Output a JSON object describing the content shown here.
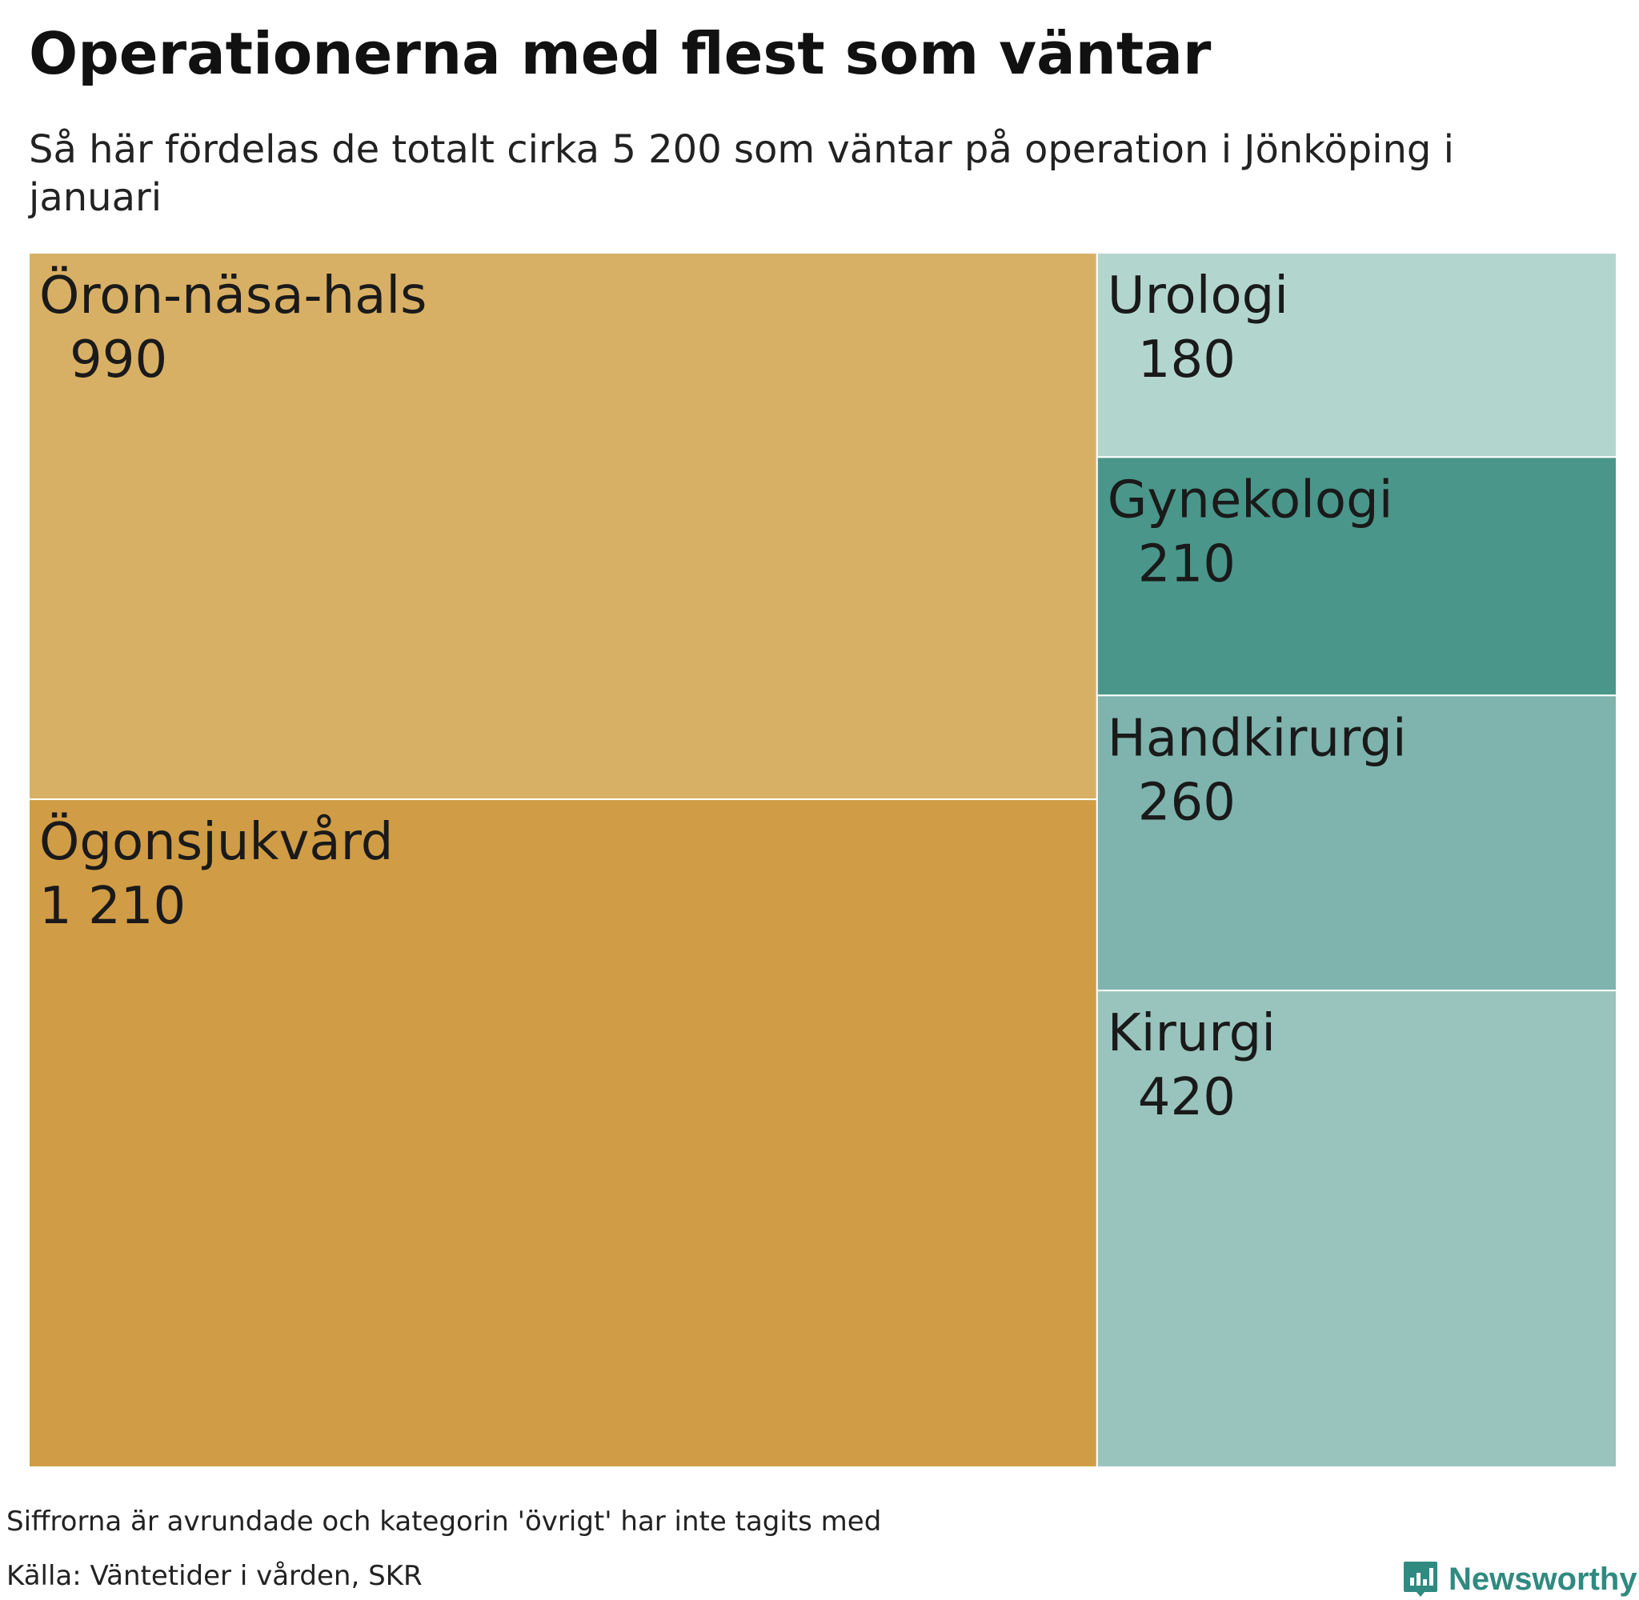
{
  "title": "Operationerna med flest som väntar",
  "subtitle": "Så här fördelas de totalt cirka 5 200 som väntar på operation i Jönköping i januari",
  "chart_data": {
    "type": "treemap",
    "items": [
      {
        "label": "Öron-näsa-hals",
        "value": 990,
        "display": "990",
        "color": "#d8b065"
      },
      {
        "label": "Ögonsjukvård",
        "value": 1210,
        "display": "1 210",
        "color": "#d09c46"
      },
      {
        "label": "Urologi",
        "value": 180,
        "display": "180",
        "color": "#b2d6ce"
      },
      {
        "label": "Gynekologi",
        "value": 210,
        "display": "210",
        "color": "#4a968a"
      },
      {
        "label": "Handkirurgi",
        "value": 260,
        "display": "260",
        "color": "#7eb4ad"
      },
      {
        "label": "Kirurgi",
        "value": 420,
        "display": "420",
        "color": "#99c4bd"
      }
    ]
  },
  "footer": {
    "note": "Siffrorna är avrundade och kategorin 'övrigt' har inte tagits med",
    "source": "Källa: Väntetider i vården, SKR"
  },
  "brand": {
    "name": "Newsworthy",
    "color": "#2f8a80"
  }
}
